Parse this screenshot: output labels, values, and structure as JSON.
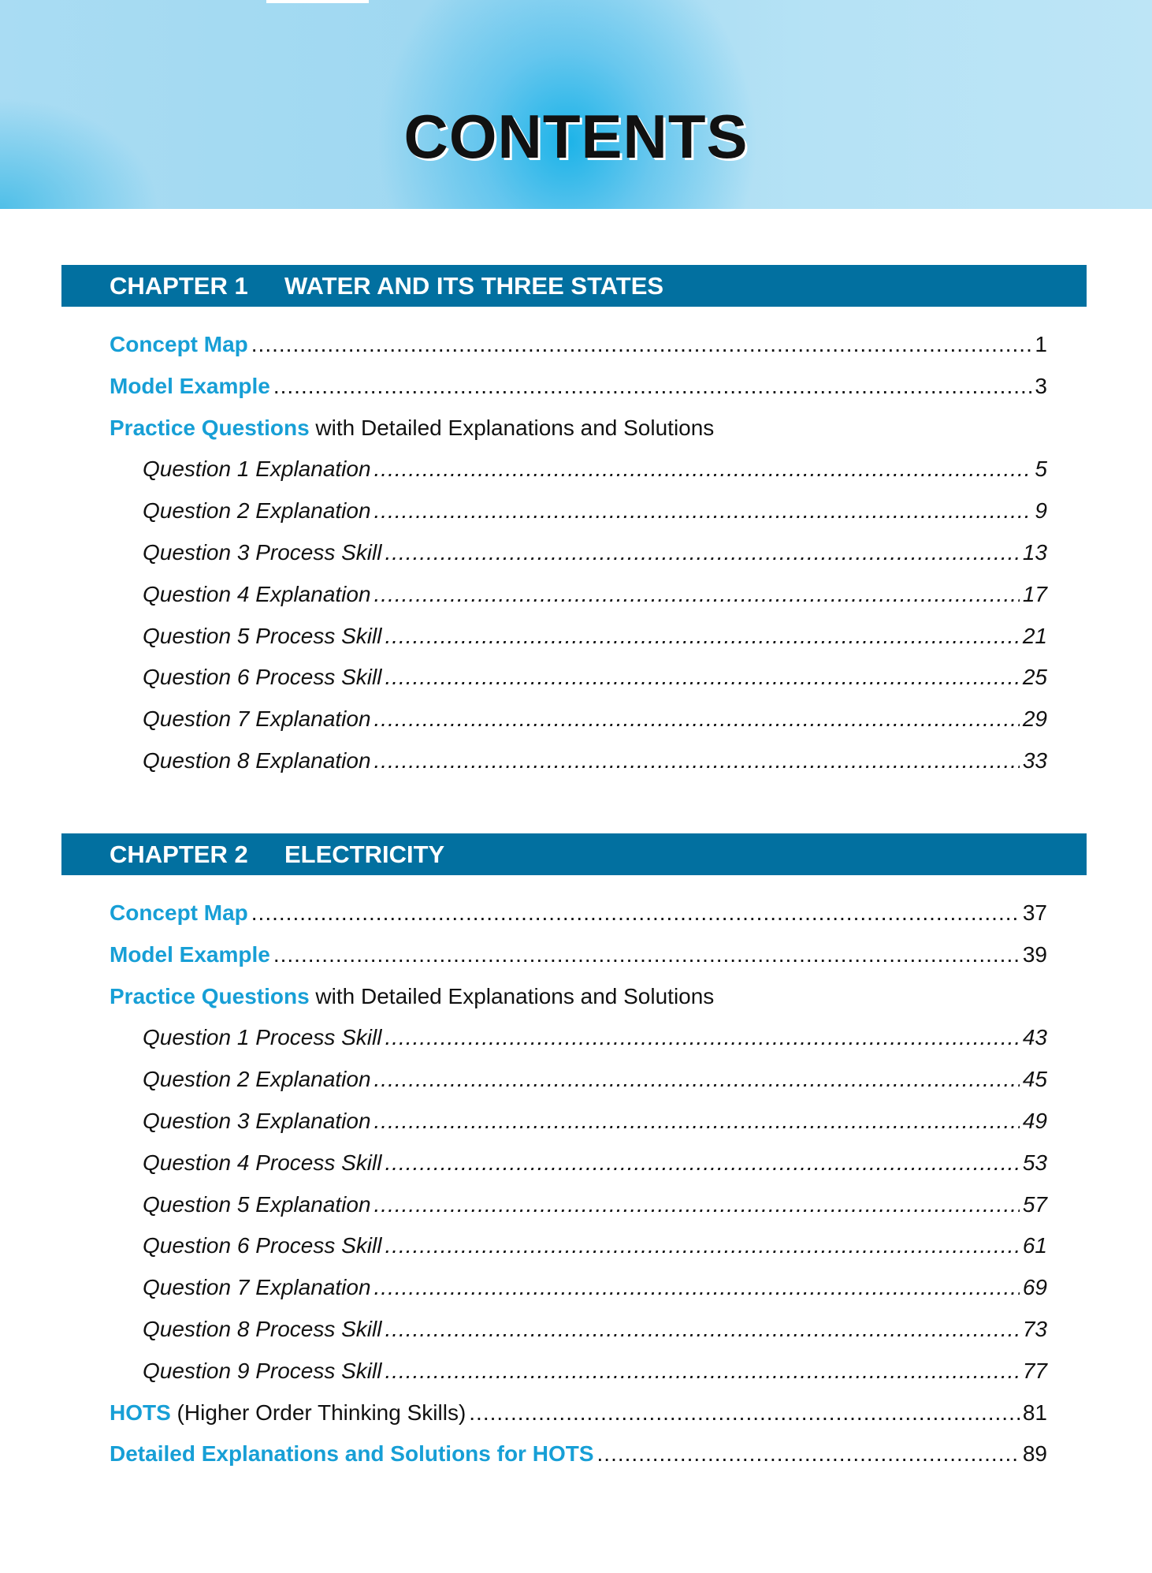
{
  "title": "CONTENTS",
  "chapters": [
    {
      "number": "CHAPTER 1",
      "name": "WATER AND ITS THREE STATES",
      "concept_map": {
        "label": "Concept Map",
        "page": "1"
      },
      "model_example": {
        "label": "Model Example",
        "page": "3"
      },
      "practice": {
        "label": "Practice Questions",
        "suffix": " with Detailed Explanations and Solutions"
      },
      "questions": [
        {
          "label": "Question 1 Explanation",
          "page": "5"
        },
        {
          "label": "Question 2 Explanation",
          "page": "9"
        },
        {
          "label": "Question 3 Process Skill",
          "page": "13"
        },
        {
          "label": "Question 4 Explanation",
          "page": "17"
        },
        {
          "label": "Question 5 Process Skill",
          "page": "21"
        },
        {
          "label": "Question 6 Process Skill",
          "page": "25"
        },
        {
          "label": "Question 7 Explanation",
          "page": "29"
        },
        {
          "label": "Question 8 Explanation",
          "page": "33"
        }
      ]
    },
    {
      "number": "CHAPTER 2",
      "name": "ELECTRICITY",
      "concept_map": {
        "label": "Concept Map",
        "page": "37"
      },
      "model_example": {
        "label": "Model Example",
        "page": "39"
      },
      "practice": {
        "label": "Practice Questions",
        "suffix": " with Detailed Explanations and Solutions"
      },
      "questions": [
        {
          "label": "Question 1 Process Skill",
          "page": "43"
        },
        {
          "label": "Question 2 Explanation",
          "page": "45"
        },
        {
          "label": "Question 3 Explanation",
          "page": "49"
        },
        {
          "label": "Question 4 Process Skill",
          "page": "53"
        },
        {
          "label": "Question 5 Explanation",
          "page": "57"
        },
        {
          "label": "Question 6 Process Skill",
          "page": "61"
        },
        {
          "label": "Question 7 Explanation",
          "page": "69"
        },
        {
          "label": "Question 8 Process Skill",
          "page": "73"
        },
        {
          "label": "Question 9 Process Skill",
          "page": "77"
        }
      ],
      "hots": {
        "label": "HOTS",
        "suffix": " (Higher Order Thinking Skills)",
        "page": "81"
      },
      "hots_solutions": {
        "label": "Detailed Explanations and Solutions for HOTS",
        "page": "89"
      }
    }
  ],
  "colors": {
    "accent": "#179fd6",
    "chapter_bar": "#0270a0",
    "banner": "#1cb3e8"
  }
}
